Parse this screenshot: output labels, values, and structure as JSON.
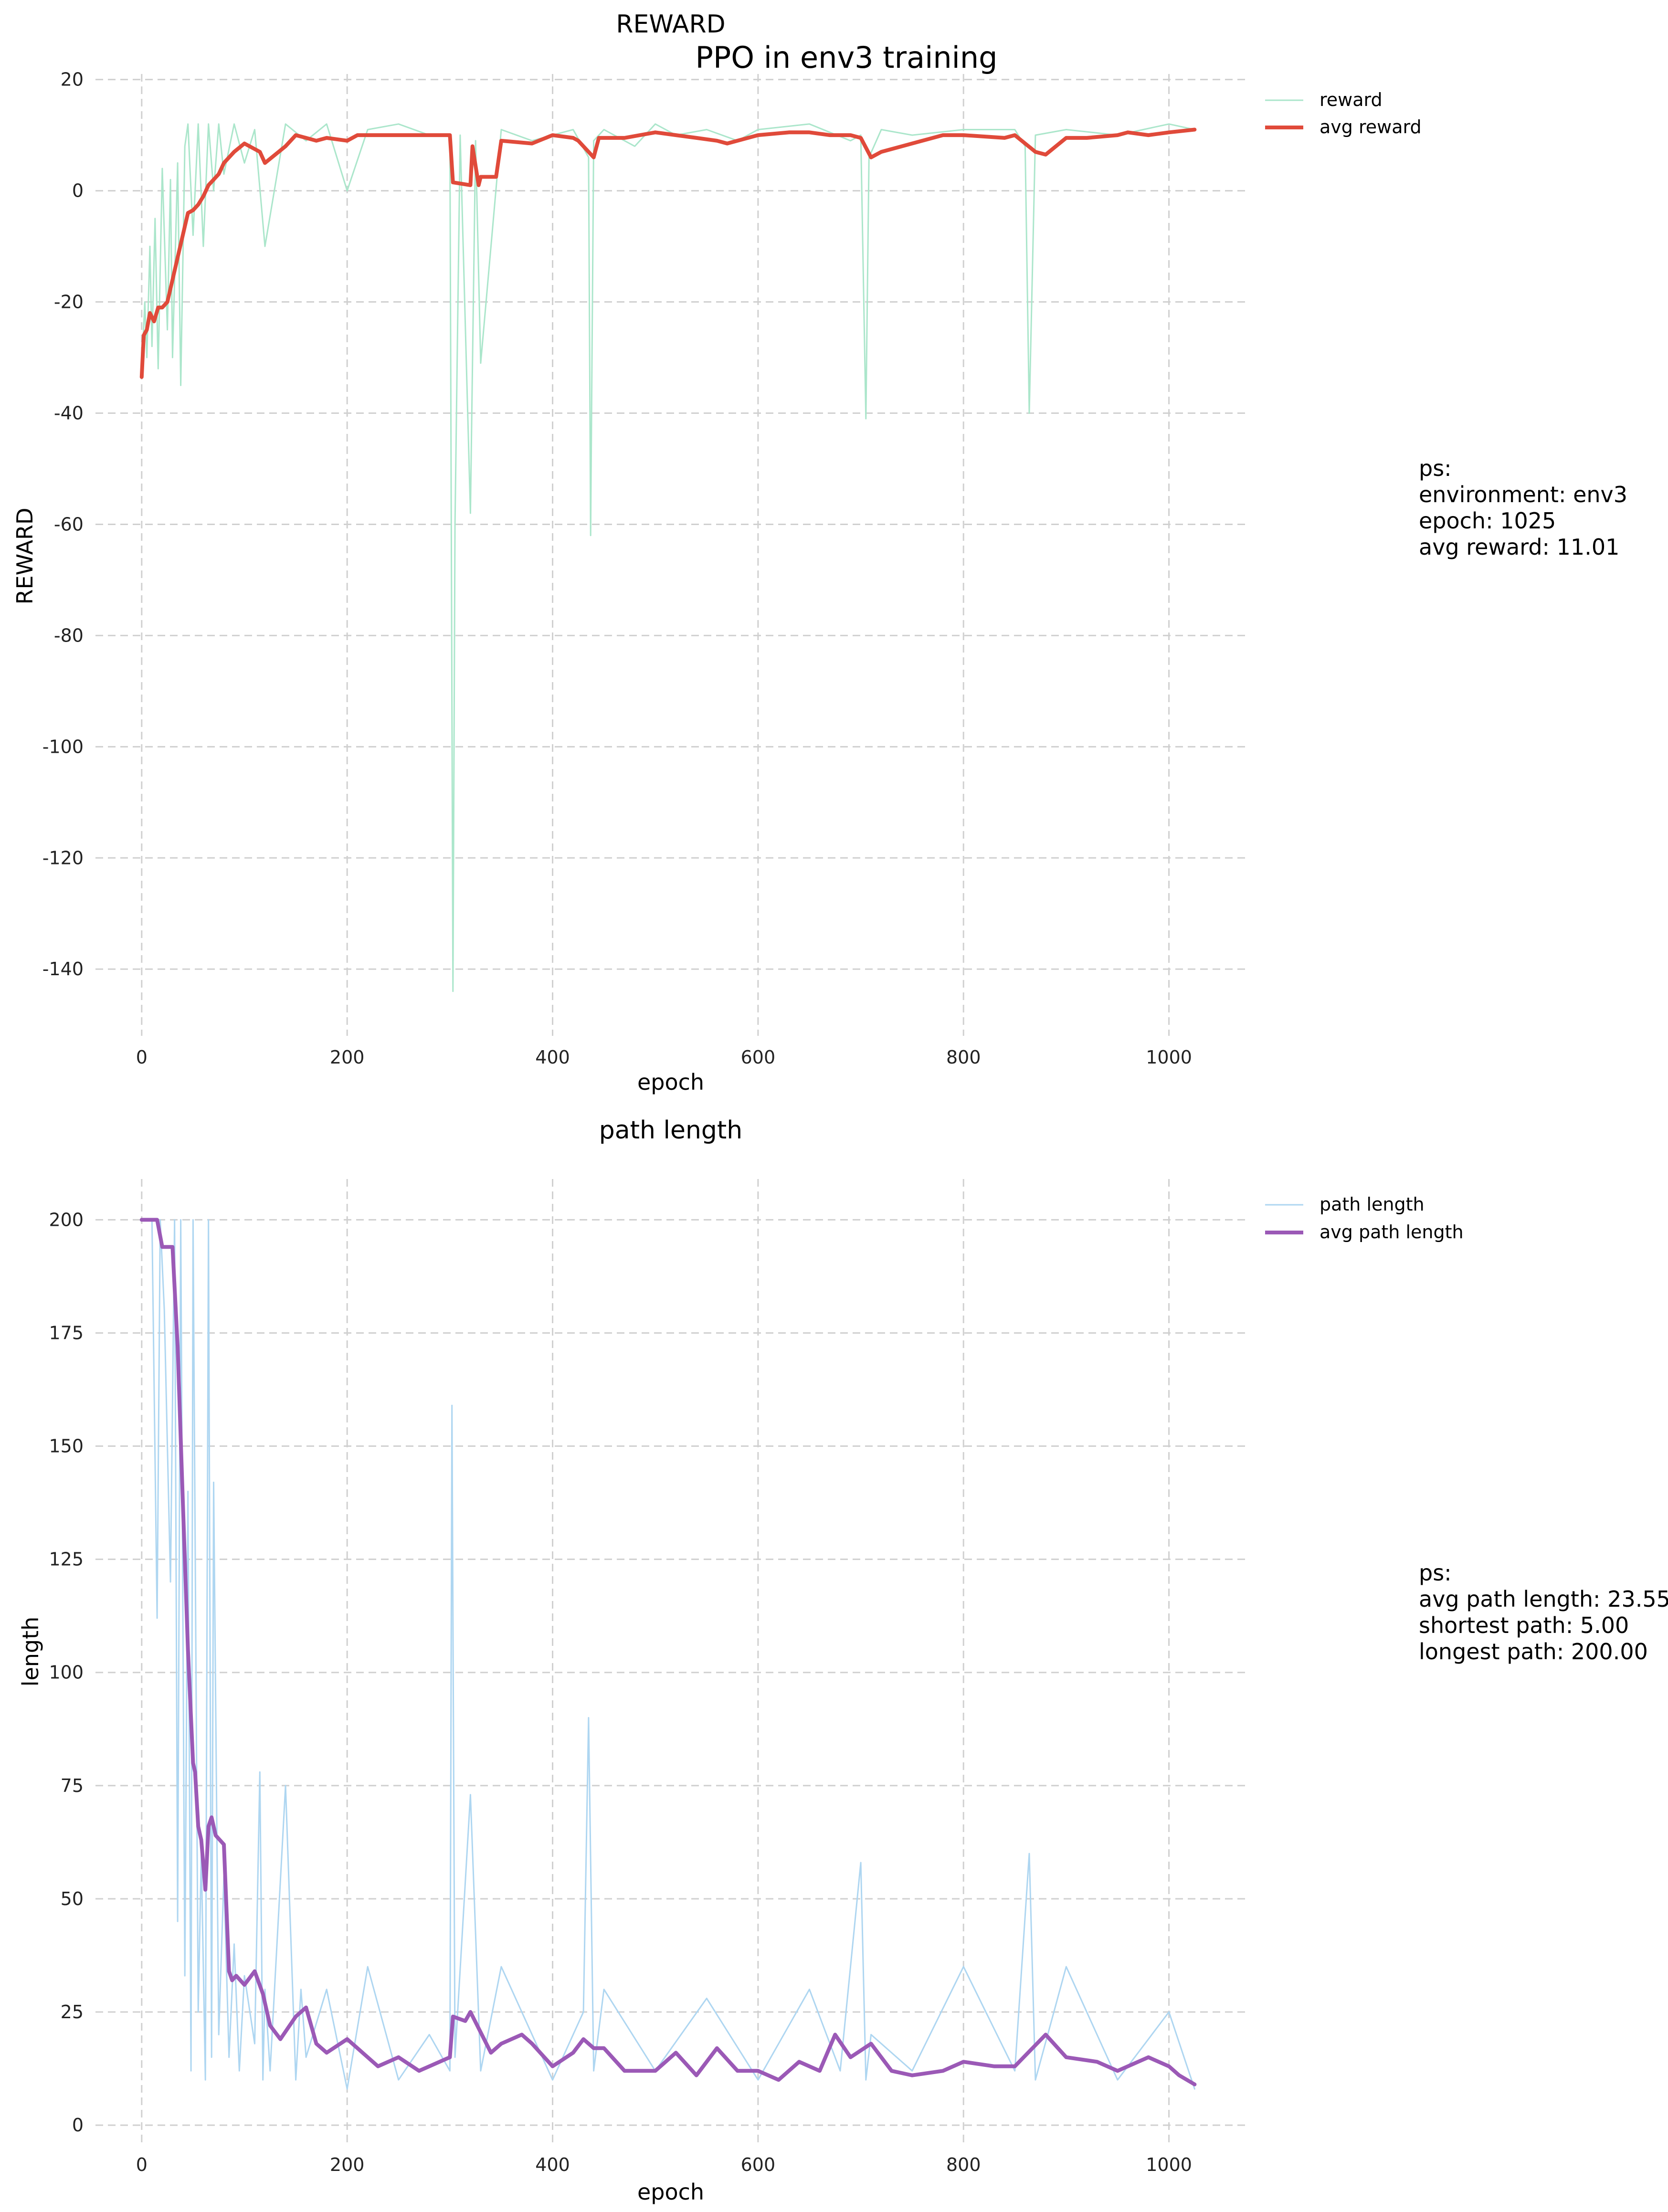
{
  "figure": {
    "suptitle": "PPO in env3 training"
  },
  "colors": {
    "reward_raw": "#abe6cb",
    "reward_avg": "#e04a3a",
    "path_raw": "#aed6f1",
    "path_avg": "#9b59b6",
    "grid": "#d0d0d0",
    "text": "#222222"
  },
  "info": {
    "reward_box": [
      "ps:",
      "environment: env3",
      "epoch: 1025",
      "avg reward: 11.01"
    ],
    "path_box": [
      "ps:",
      "avg path length: 23.55",
      "shortest path: 5.00",
      "longest path: 200.00"
    ]
  },
  "chart_data": [
    {
      "type": "line",
      "title": "REWARD",
      "xlabel": "epoch",
      "ylabel": "REWARD",
      "xlim": [
        -45,
        1075
      ],
      "ylim": [
        -152,
        21
      ],
      "xticks": [
        0,
        200,
        400,
        600,
        800,
        1000
      ],
      "yticks": [
        20,
        0,
        -20,
        -40,
        -60,
        -80,
        -100,
        -120,
        -140
      ],
      "grid": true,
      "legend": "top-right outside",
      "series": [
        {
          "name": "reward",
          "style": "raw",
          "x": [
            0,
            3,
            5,
            8,
            10,
            13,
            16,
            20,
            25,
            28,
            30,
            35,
            38,
            42,
            45,
            50,
            55,
            60,
            65,
            70,
            75,
            80,
            90,
            100,
            110,
            120,
            140,
            160,
            180,
            200,
            220,
            250,
            280,
            300,
            303,
            305,
            310,
            320,
            325,
            330,
            350,
            380,
            400,
            420,
            435,
            437,
            440,
            450,
            480,
            500,
            520,
            550,
            580,
            600,
            650,
            690,
            700,
            705,
            708,
            720,
            750,
            800,
            850,
            860,
            864,
            870,
            900,
            950,
            1000,
            1025
          ],
          "y": [
            -33,
            -20,
            -30,
            -10,
            -28,
            -5,
            -32,
            4,
            -25,
            2,
            -30,
            5,
            -35,
            8,
            12,
            -8,
            12,
            -10,
            12,
            0,
            12,
            3,
            12,
            5,
            11,
            -10,
            12,
            9,
            12,
            0,
            11,
            12,
            10,
            10,
            -144,
            -60,
            10,
            -58,
            9,
            -31,
            11,
            9,
            10,
            11,
            6,
            -62,
            9,
            11,
            8,
            12,
            10,
            11,
            9,
            11,
            12,
            9,
            10,
            -41,
            6,
            11,
            10,
            11,
            11,
            8,
            -40,
            10,
            11,
            10,
            12,
            11
          ]
        },
        {
          "name": "avg reward",
          "style": "avg",
          "x": [
            0,
            2,
            5,
            8,
            12,
            16,
            20,
            25,
            30,
            35,
            40,
            45,
            50,
            55,
            60,
            65,
            70,
            75,
            80,
            90,
            100,
            115,
            120,
            130,
            140,
            150,
            160,
            170,
            180,
            200,
            210,
            230,
            280,
            300,
            303,
            320,
            322,
            328,
            330,
            345,
            350,
            380,
            400,
            420,
            425,
            440,
            445,
            470,
            500,
            520,
            540,
            560,
            570,
            600,
            630,
            650,
            670,
            690,
            700,
            710,
            720,
            780,
            800,
            840,
            850,
            870,
            880,
            900,
            920,
            950,
            960,
            980,
            1000,
            1025
          ],
          "y": [
            -33.5,
            -26,
            -25,
            -22,
            -23.5,
            -21,
            -21,
            -20,
            -16,
            -12,
            -8,
            -4,
            -3.5,
            -2.5,
            -1,
            1,
            2,
            3,
            5,
            7,
            8.5,
            7,
            5,
            6.5,
            8,
            10,
            9.5,
            9,
            9.5,
            9,
            10,
            10,
            10,
            10,
            1.5,
            1,
            8,
            1,
            2.5,
            2.5,
            9,
            8.5,
            10,
            9.5,
            9,
            6,
            9.5,
            9.5,
            10.5,
            10,
            9.5,
            9,
            8.5,
            10,
            10.5,
            10.5,
            10,
            10,
            9.5,
            6,
            7,
            10,
            10,
            9.5,
            10,
            7,
            6.5,
            9.5,
            9.5,
            10,
            10.5,
            10,
            10.5,
            11
          ]
        }
      ]
    },
    {
      "type": "line",
      "title": "path length",
      "xlabel": "epoch",
      "ylabel": "length",
      "xlim": [
        -45,
        1075
      ],
      "ylim": [
        -4,
        209
      ],
      "xticks": [
        0,
        200,
        400,
        600,
        800,
        1000
      ],
      "yticks": [
        0,
        25,
        50,
        75,
        100,
        125,
        150,
        175,
        200
      ],
      "grid": true,
      "legend": "top-right outside",
      "series": [
        {
          "name": "path length",
          "style": "raw",
          "x": [
            0,
            10,
            15,
            18,
            22,
            28,
            32,
            35,
            38,
            42,
            45,
            48,
            50,
            55,
            58,
            62,
            65,
            68,
            70,
            75,
            80,
            85,
            90,
            95,
            100,
            110,
            115,
            118,
            120,
            125,
            140,
            150,
            155,
            160,
            180,
            200,
            220,
            250,
            280,
            300,
            302,
            305,
            320,
            330,
            350,
            400,
            430,
            435,
            440,
            450,
            500,
            550,
            600,
            650,
            680,
            700,
            705,
            710,
            750,
            800,
            850,
            864,
            870,
            900,
            950,
            1000,
            1025
          ],
          "y": [
            200,
            200,
            112,
            200,
            180,
            120,
            200,
            45,
            200,
            33,
            140,
            12,
            200,
            25,
            60,
            10,
            200,
            15,
            142,
            20,
            55,
            15,
            40,
            12,
            33,
            18,
            78,
            10,
            30,
            12,
            75,
            10,
            30,
            15,
            30,
            8,
            35,
            10,
            20,
            12,
            159,
            15,
            73,
            12,
            35,
            10,
            25,
            90,
            12,
            30,
            12,
            28,
            10,
            30,
            12,
            58,
            10,
            20,
            12,
            35,
            12,
            60,
            10,
            35,
            10,
            25,
            8
          ]
        },
        {
          "name": "avg path length",
          "style": "avg",
          "x": [
            0,
            15,
            20,
            30,
            35,
            40,
            45,
            50,
            52,
            55,
            58,
            62,
            65,
            68,
            72,
            80,
            85,
            88,
            92,
            100,
            110,
            118,
            125,
            135,
            150,
            160,
            170,
            180,
            200,
            210,
            230,
            250,
            270,
            290,
            300,
            303,
            315,
            320,
            340,
            350,
            370,
            380,
            400,
            420,
            430,
            440,
            450,
            470,
            500,
            520,
            540,
            560,
            580,
            600,
            620,
            640,
            660,
            675,
            690,
            710,
            730,
            750,
            780,
            800,
            830,
            850,
            880,
            900,
            930,
            950,
            980,
            1000,
            1010,
            1025
          ],
          "y": [
            200,
            200,
            194,
            194,
            172,
            138,
            105,
            80,
            78,
            66,
            63,
            52,
            66,
            68,
            64,
            62,
            34,
            32,
            33,
            31,
            34,
            29,
            22,
            19,
            24,
            26,
            18,
            16,
            19,
            17,
            13,
            15,
            12,
            14,
            15,
            24,
            23,
            25,
            16,
            18,
            20,
            18,
            13,
            16,
            19,
            17,
            17,
            12,
            12,
            16,
            11,
            17,
            12,
            12,
            10,
            14,
            12,
            20,
            15,
            18,
            12,
            11,
            12,
            14,
            13,
            13,
            20,
            15,
            14,
            12,
            15,
            13,
            11,
            9
          ]
        }
      ]
    }
  ]
}
